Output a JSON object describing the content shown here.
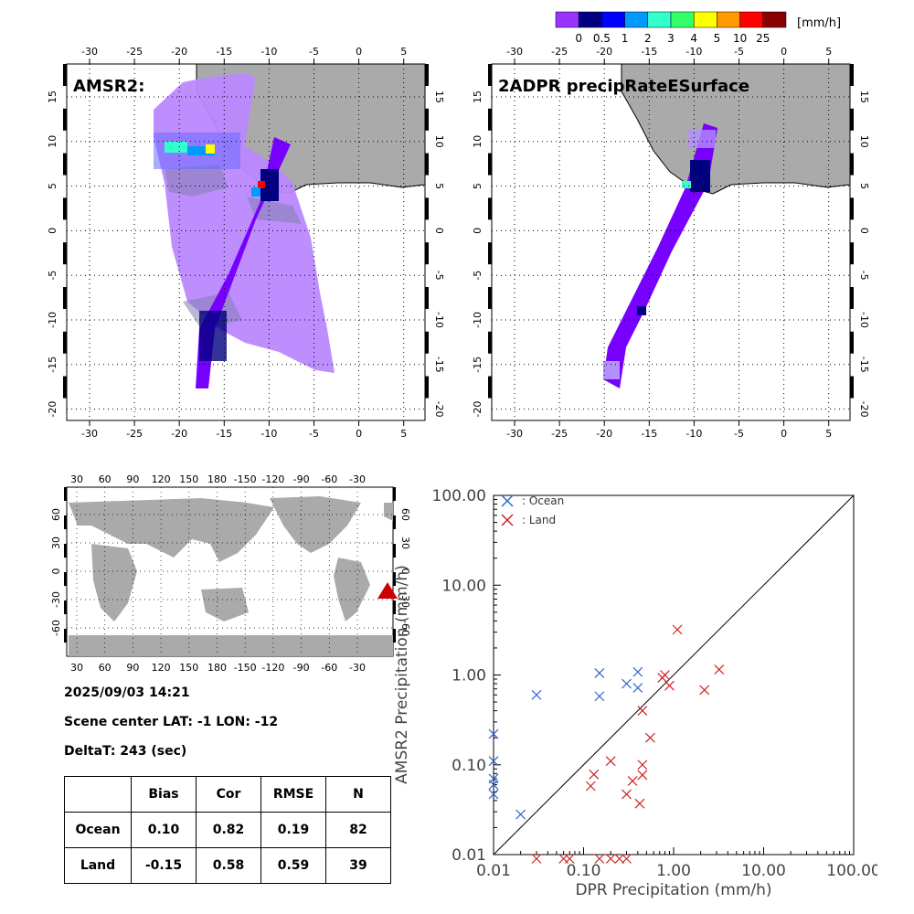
{
  "colorbar": {
    "unit": "[mm/h]",
    "labels": [
      "0",
      "0.5",
      "1",
      "2",
      "3",
      "4",
      "5",
      "10",
      "25"
    ],
    "colors": [
      "#9933ff",
      "#000080",
      "#0000ff",
      "#0099ff",
      "#33ffcc",
      "#33ff66",
      "#ffff00",
      "#ff9900",
      "#ff0000",
      "#880000"
    ]
  },
  "maps": {
    "amsr2_title": "AMSR2:",
    "dpr_title": "2ADPR precipRateESurface",
    "lon_ticks": [
      "-30",
      "-25",
      "-20",
      "-15",
      "-10",
      "-5",
      "0",
      "5"
    ],
    "lat_ticks": [
      "15",
      "10",
      "5",
      "0",
      "-5",
      "-10",
      "-15",
      "-20"
    ],
    "land_color": "#aaaaaa",
    "swath_color": "#bb88ff",
    "dpr_color": "#7700ff"
  },
  "world": {
    "lon_ticks": [
      "30",
      "60",
      "90",
      "120",
      "150",
      "180",
      "-150",
      "-120",
      "-90",
      "-60",
      "-30"
    ],
    "lat_ticks": [
      "60",
      "30",
      "0",
      "-30",
      "-60"
    ],
    "marker_color": "#cc0000"
  },
  "info": {
    "datetime": "2025/09/03 14:21",
    "scene_center": "Scene center LAT: -1   LON: -12",
    "delta_t": "DeltaT:  243 (sec)"
  },
  "stats": {
    "headers": [
      "",
      "Bias",
      "Cor",
      "RMSE",
      "N"
    ],
    "rows": [
      [
        "Ocean",
        "0.10",
        "0.82",
        "0.19",
        "82"
      ],
      [
        "Land",
        "-0.15",
        "0.58",
        "0.59",
        "39"
      ]
    ]
  },
  "chart_data": {
    "type": "scatter",
    "xlabel": "DPR Precipitation (mm/h)",
    "ylabel": "AMSR2 Precipitation (mm/h)",
    "xscale": "log",
    "yscale": "log",
    "xlim": [
      0.01,
      100
    ],
    "ylim": [
      0.01,
      100
    ],
    "x_tick_labels": [
      "0.01",
      "0.10",
      "1.00",
      "10.00",
      "100.00"
    ],
    "y_tick_labels": [
      "0.01",
      "0.10",
      "1.00",
      "10.00",
      "100.00"
    ],
    "legend_position": "top-left",
    "reference_line": "1:1",
    "series": [
      {
        "name": ": Ocean",
        "color": "#3366cc",
        "marker": "x",
        "points": [
          [
            0.01,
            0.22
          ],
          [
            0.01,
            0.11
          ],
          [
            0.01,
            0.07
          ],
          [
            0.01,
            0.06
          ],
          [
            0.01,
            0.047
          ],
          [
            0.02,
            0.028
          ],
          [
            0.03,
            0.6
          ],
          [
            0.15,
            1.05
          ],
          [
            0.15,
            0.58
          ],
          [
            0.3,
            0.8
          ],
          [
            0.4,
            1.08
          ],
          [
            0.4,
            0.72
          ]
        ]
      },
      {
        "name": ": Land",
        "color": "#cc2222",
        "marker": "x",
        "points": [
          [
            1.1,
            3.2
          ],
          [
            0.8,
            1.0
          ],
          [
            0.75,
            0.93
          ],
          [
            0.9,
            0.76
          ],
          [
            2.2,
            0.68
          ],
          [
            3.2,
            1.15
          ],
          [
            0.45,
            0.4
          ],
          [
            0.55,
            0.2
          ],
          [
            0.45,
            0.1
          ],
          [
            0.45,
            0.077
          ],
          [
            0.2,
            0.11
          ],
          [
            0.13,
            0.078
          ],
          [
            0.12,
            0.058
          ],
          [
            0.35,
            0.066
          ],
          [
            0.3,
            0.047
          ],
          [
            0.42,
            0.037
          ],
          [
            0.03,
            0.009
          ],
          [
            0.06,
            0.009
          ],
          [
            0.07,
            0.009
          ],
          [
            0.15,
            0.009
          ],
          [
            0.2,
            0.009
          ],
          [
            0.25,
            0.009
          ],
          [
            0.3,
            0.009
          ]
        ]
      }
    ]
  }
}
